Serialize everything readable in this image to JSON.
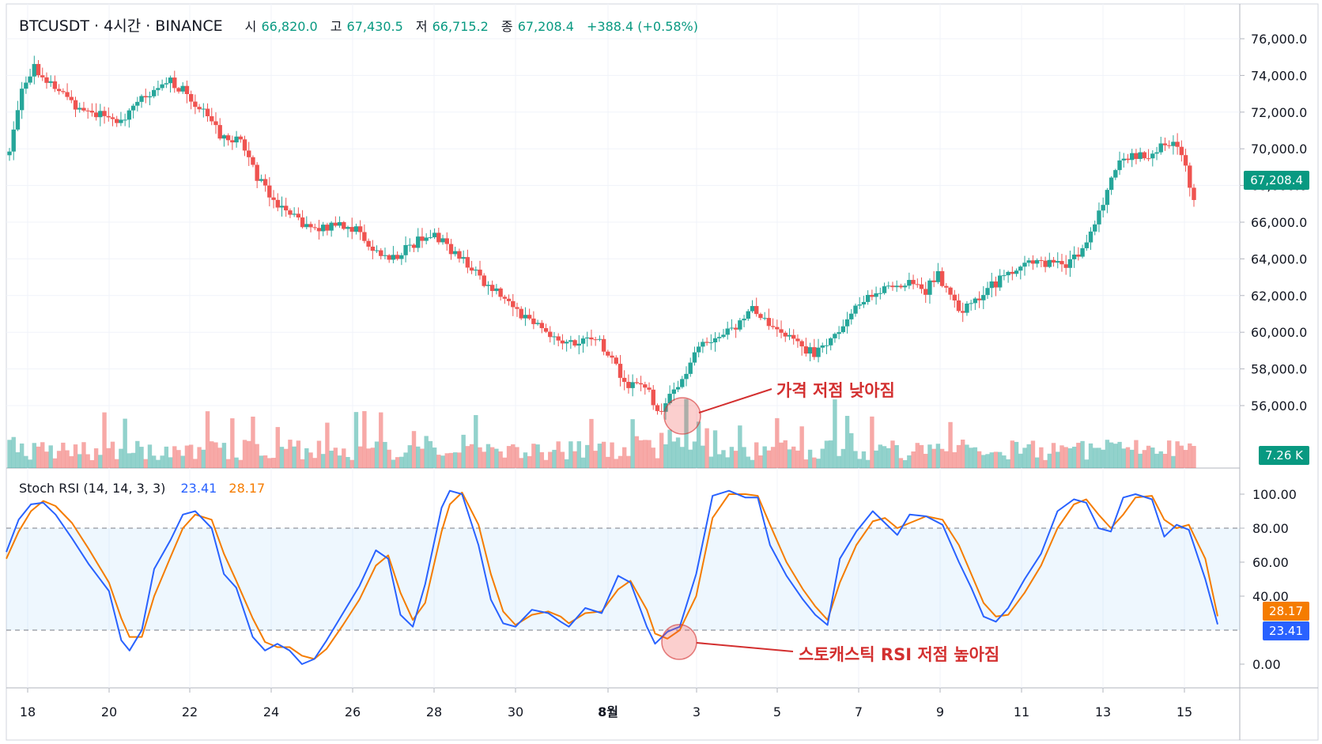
{
  "header": {
    "symbol": "BTCUSDT · 4시간 · BINANCE",
    "open_label": "시",
    "open": "66,820.0",
    "high_label": "고",
    "high": "67,430.5",
    "low_label": "저",
    "low": "66,715.2",
    "close_label": "종",
    "close": "67,208.4",
    "change": "+388.4 (+0.58%)"
  },
  "indicator": {
    "name": "Stoch RSI (14, 14, 3, 3)",
    "k_value": "23.41",
    "d_value": "28.17"
  },
  "price_tag": "67,208.4",
  "volume_tag": "7.26 K",
  "k_tag": "23.41",
  "d_tag": "28.17",
  "annotations": {
    "price": "가격 저점 낮아짐",
    "stoch": "스토캐스틱 RSI 저점 높아짐"
  },
  "colors": {
    "up": "#26a69a",
    "down": "#ef5350",
    "k_line": "#2962ff",
    "d_line": "#f57c00",
    "annotation": "#d32f2f"
  },
  "chart_data": [
    {
      "type": "candlestick",
      "title": "BTCUSDT · 4시간 · BINANCE",
      "ylim": [
        54000,
        77000
      ],
      "y_ticks": [
        "76,000.0",
        "74,000.0",
        "72,000.0",
        "70,000.0",
        "68,000.0",
        "66,000.0",
        "64,000.0",
        "62,000.0",
        "60,000.0",
        "58,000.0",
        "56,000.0"
      ],
      "x_ticks": [
        "18",
        "20",
        "22",
        "24",
        "26",
        "28",
        "30",
        "8월",
        "3",
        "5",
        "7",
        "9",
        "11",
        "13",
        "15"
      ],
      "close_path": [
        [
          0,
          69800
        ],
        [
          3,
          73500
        ],
        [
          6,
          74500
        ],
        [
          10,
          73500
        ],
        [
          16,
          72400
        ],
        [
          20,
          72000
        ],
        [
          27,
          71500
        ],
        [
          31,
          72500
        ],
        [
          35,
          73000
        ],
        [
          39,
          73700
        ],
        [
          43,
          73000
        ],
        [
          47,
          72000
        ],
        [
          52,
          70500
        ],
        [
          56,
          70500
        ],
        [
          60,
          68500
        ],
        [
          65,
          67000
        ],
        [
          70,
          66000
        ],
        [
          75,
          65500
        ],
        [
          79,
          66000
        ],
        [
          84,
          65600
        ],
        [
          88,
          64500
        ],
        [
          92,
          64000
        ],
        [
          96,
          64500
        ],
        [
          99,
          65000
        ],
        [
          103,
          65300
        ],
        [
          107,
          64500
        ],
        [
          112,
          63500
        ],
        [
          116,
          62500
        ],
        [
          120,
          62000
        ],
        [
          124,
          61000
        ],
        [
          128,
          60500
        ],
        [
          133,
          59500
        ],
        [
          138,
          59300
        ],
        [
          142,
          59800
        ],
        [
          146,
          58500
        ],
        [
          150,
          57000
        ],
        [
          154,
          57200
        ],
        [
          157,
          55600
        ],
        [
          160,
          56500
        ],
        [
          163,
          57500
        ],
        [
          167,
          59200
        ],
        [
          171,
          59700
        ],
        [
          176,
          60200
        ],
        [
          180,
          61500
        ],
        [
          184,
          60200
        ],
        [
          188,
          59800
        ],
        [
          192,
          59200
        ],
        [
          195,
          58800
        ],
        [
          198,
          59500
        ],
        [
          202,
          60500
        ],
        [
          206,
          61500
        ],
        [
          210,
          62200
        ],
        [
          214,
          62500
        ],
        [
          218,
          62700
        ],
        [
          222,
          62300
        ],
        [
          225,
          63200
        ],
        [
          228,
          61800
        ],
        [
          231,
          61200
        ],
        [
          235,
          62000
        ],
        [
          239,
          62700
        ],
        [
          243,
          63300
        ],
        [
          247,
          63800
        ],
        [
          251,
          63800
        ],
        [
          255,
          63600
        ],
        [
          259,
          64200
        ],
        [
          263,
          65800
        ],
        [
          266,
          67800
        ],
        [
          269,
          69500
        ],
        [
          272,
          69700
        ],
        [
          275,
          69500
        ],
        [
          279,
          70200
        ],
        [
          283,
          70100
        ],
        [
          285,
          69000
        ],
        [
          287,
          67200
        ]
      ],
      "candle_count": 288,
      "last_close": 67208.4
    },
    {
      "type": "bar",
      "title": "Volume",
      "last_value": "7.26 K"
    },
    {
      "type": "line",
      "title": "Stoch RSI (14, 14, 3, 3)",
      "ylim": [
        -15,
        105
      ],
      "y_ticks": [
        "100.00",
        "80.00",
        "60.00",
        "40.00",
        "0.00"
      ],
      "bands": [
        20,
        80
      ],
      "series": [
        {
          "name": "K",
          "color": "#2962ff",
          "points": [
            [
              0,
              66
            ],
            [
              3,
              85
            ],
            [
              6,
              94
            ],
            [
              9,
              95
            ],
            [
              12,
              88
            ],
            [
              16,
              74
            ],
            [
              20,
              59
            ],
            [
              25,
              43
            ],
            [
              28,
              14
            ],
            [
              30,
              8
            ],
            [
              33,
              20
            ],
            [
              36,
              56
            ],
            [
              40,
              73
            ],
            [
              43,
              88
            ],
            [
              46,
              90
            ],
            [
              50,
              80
            ],
            [
              53,
              53
            ],
            [
              56,
              45
            ],
            [
              60,
              16
            ],
            [
              63,
              8
            ],
            [
              66,
              12
            ],
            [
              69,
              8
            ],
            [
              72,
              0
            ],
            [
              75,
              3
            ],
            [
              78,
              14
            ],
            [
              82,
              30
            ],
            [
              86,
              46
            ],
            [
              90,
              67
            ],
            [
              93,
              62
            ],
            [
              96,
              29
            ],
            [
              99,
              22
            ],
            [
              102,
              47
            ],
            [
              106,
              92
            ],
            [
              108,
              102
            ],
            [
              111,
              100
            ],
            [
              115,
              70
            ],
            [
              118,
              38
            ],
            [
              121,
              24
            ],
            [
              124,
              22
            ],
            [
              128,
              32
            ],
            [
              132,
              30
            ],
            [
              135,
              25
            ],
            [
              137,
              22
            ],
            [
              141,
              33
            ],
            [
              145,
              30
            ],
            [
              149,
              52
            ],
            [
              152,
              48
            ],
            [
              156,
              22
            ],
            [
              158,
              12
            ],
            [
              161,
              19
            ],
            [
              164,
              22
            ],
            [
              168,
              53
            ],
            [
              172,
              99
            ],
            [
              176,
              102
            ],
            [
              180,
              98
            ],
            [
              183,
              98
            ],
            [
              186,
              70
            ],
            [
              190,
              52
            ],
            [
              194,
              38
            ],
            [
              197,
              29
            ],
            [
              200,
              23
            ],
            [
              203,
              62
            ],
            [
              207,
              78
            ],
            [
              211,
              90
            ],
            [
              214,
              83
            ],
            [
              217,
              76
            ],
            [
              220,
              88
            ],
            [
              224,
              87
            ],
            [
              228,
              82
            ],
            [
              232,
              60
            ],
            [
              235,
              45
            ],
            [
              238,
              28
            ],
            [
              241,
              25
            ],
            [
              244,
              33
            ],
            [
              248,
              50
            ],
            [
              252,
              65
            ],
            [
              256,
              90
            ],
            [
              260,
              97
            ],
            [
              263,
              95
            ],
            [
              266,
              80
            ],
            [
              269,
              78
            ],
            [
              272,
              98
            ],
            [
              275,
              100
            ],
            [
              279,
              97
            ],
            [
              282,
              75
            ],
            [
              285,
              82
            ],
            [
              288,
              79
            ],
            [
              292,
              50
            ],
            [
              295,
              23.41
            ]
          ]
        },
        {
          "name": "D",
          "color": "#f57c00",
          "points": [
            [
              0,
              62
            ],
            [
              3,
              78
            ],
            [
              6,
              90
            ],
            [
              9,
              96
            ],
            [
              12,
              93
            ],
            [
              16,
              83
            ],
            [
              20,
              68
            ],
            [
              25,
              48
            ],
            [
              28,
              27
            ],
            [
              30,
              16
            ],
            [
              33,
              16
            ],
            [
              36,
              40
            ],
            [
              40,
              63
            ],
            [
              43,
              80
            ],
            [
              46,
              88
            ],
            [
              50,
              85
            ],
            [
              53,
              65
            ],
            [
              56,
              49
            ],
            [
              60,
              27
            ],
            [
              63,
              13
            ],
            [
              66,
              10
            ],
            [
              69,
              10
            ],
            [
              72,
              5
            ],
            [
              75,
              3
            ],
            [
              78,
              9
            ],
            [
              82,
              23
            ],
            [
              86,
              38
            ],
            [
              90,
              58
            ],
            [
              93,
              64
            ],
            [
              96,
              42
            ],
            [
              99,
              26
            ],
            [
              102,
              36
            ],
            [
              106,
              78
            ],
            [
              108,
              94
            ],
            [
              111,
              101
            ],
            [
              115,
              82
            ],
            [
              118,
              53
            ],
            [
              121,
              31
            ],
            [
              124,
              23
            ],
            [
              128,
              29
            ],
            [
              132,
              31
            ],
            [
              135,
              28
            ],
            [
              137,
              24
            ],
            [
              141,
              30
            ],
            [
              145,
              31
            ],
            [
              149,
              44
            ],
            [
              152,
              49
            ],
            [
              156,
              32
            ],
            [
              158,
              18
            ],
            [
              161,
              15
            ],
            [
              164,
              20
            ],
            [
              168,
              40
            ],
            [
              172,
              86
            ],
            [
              176,
              100
            ],
            [
              180,
              100
            ],
            [
              183,
              99
            ],
            [
              186,
              82
            ],
            [
              190,
              60
            ],
            [
              194,
              44
            ],
            [
              197,
              34
            ],
            [
              200,
              26
            ],
            [
              203,
              48
            ],
            [
              207,
              70
            ],
            [
              211,
              84
            ],
            [
              214,
              86
            ],
            [
              217,
              80
            ],
            [
              220,
              83
            ],
            [
              224,
              87
            ],
            [
              228,
              85
            ],
            [
              232,
              70
            ],
            [
              235,
              53
            ],
            [
              238,
              36
            ],
            [
              241,
              28
            ],
            [
              244,
              29
            ],
            [
              248,
              42
            ],
            [
              252,
              58
            ],
            [
              256,
              80
            ],
            [
              260,
              94
            ],
            [
              263,
              97
            ],
            [
              266,
              88
            ],
            [
              269,
              80
            ],
            [
              272,
              88
            ],
            [
              275,
              98
            ],
            [
              279,
              99
            ],
            [
              282,
              85
            ],
            [
              285,
              80
            ],
            [
              288,
              82
            ],
            [
              292,
              62
            ],
            [
              295,
              28.17
            ]
          ]
        }
      ]
    }
  ]
}
